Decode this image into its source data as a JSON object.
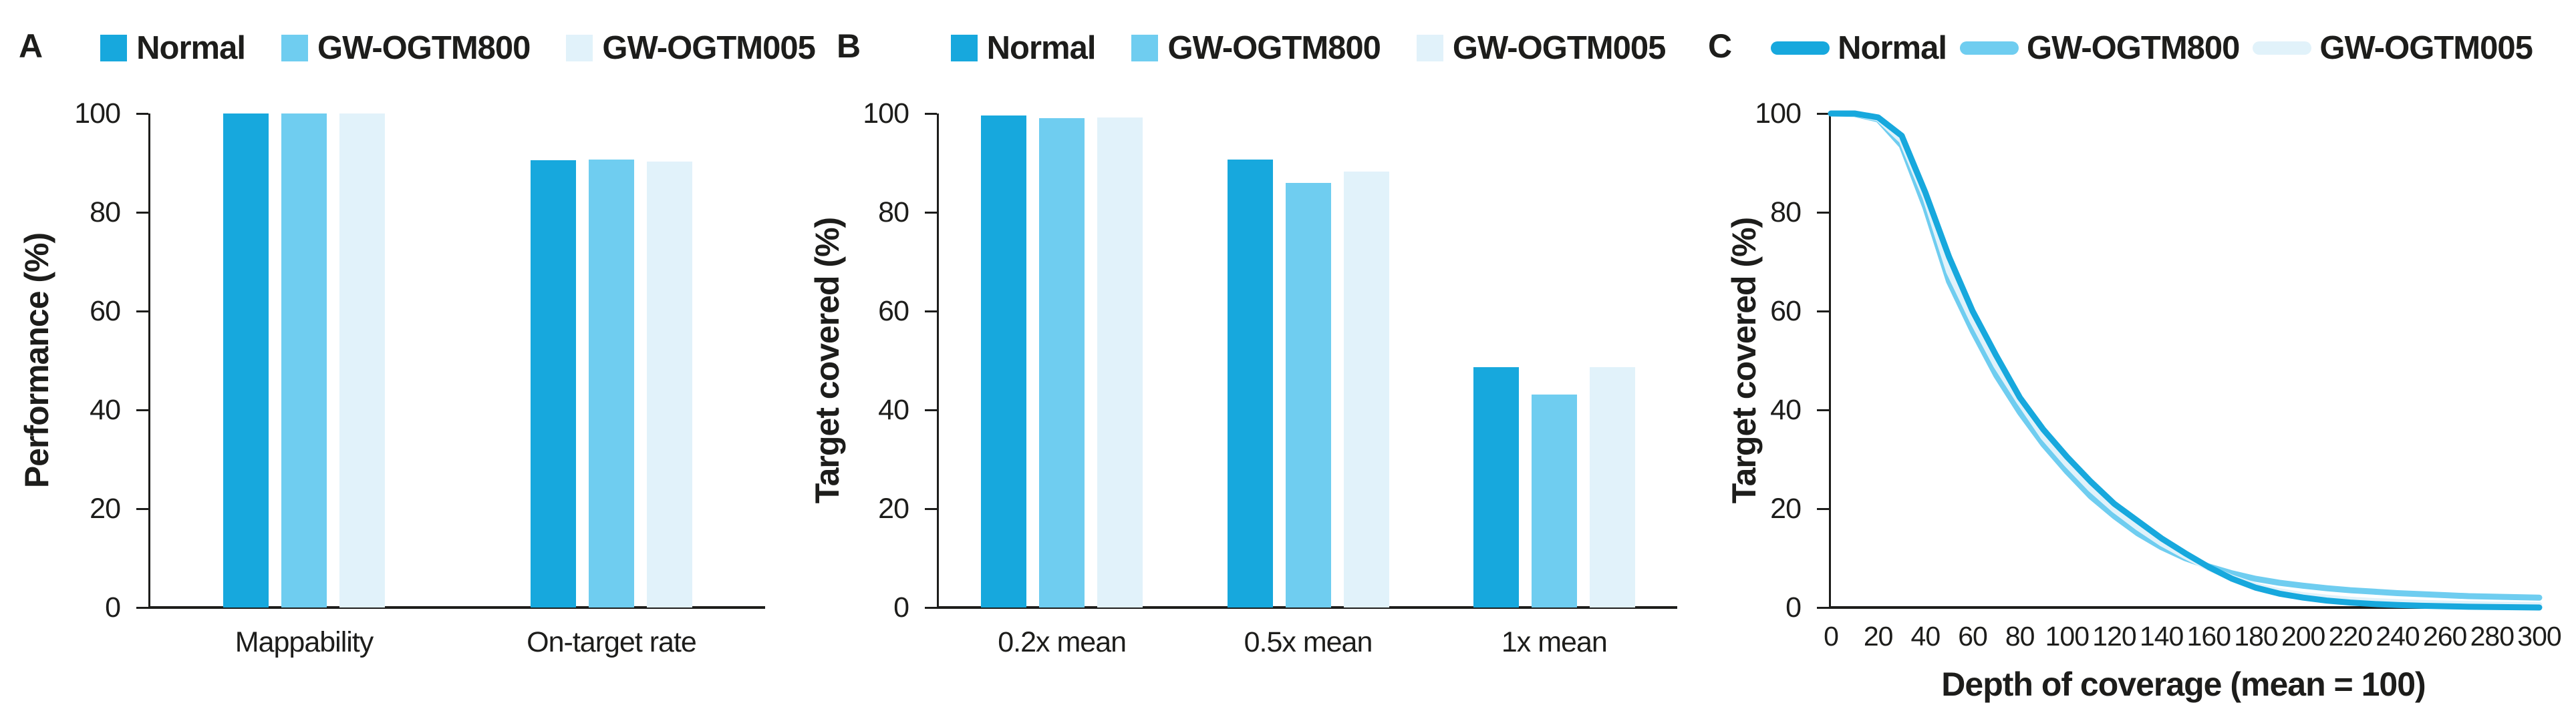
{
  "chart_data": [
    {
      "panel_letter": "A",
      "type": "bar",
      "title": "",
      "y_label": "Performance (%)",
      "x_label": "",
      "categories": [
        "Mappability",
        "On-target rate"
      ],
      "series": [
        {
          "name": "Normal",
          "color": "#17a8dd",
          "values": [
            100,
            90.5
          ]
        },
        {
          "name": "GW-OGTM800",
          "color": "#6fcdf0",
          "values": [
            100,
            90.7
          ]
        },
        {
          "name": "GW-OGTM005",
          "color": "#e1f2fa",
          "values": [
            100,
            90.3
          ]
        }
      ],
      "ylim": [
        0,
        100
      ],
      "yticks": [
        0,
        20,
        40,
        60,
        80,
        100
      ],
      "grid": false,
      "legend_position": "top",
      "legend_swatch": "square"
    },
    {
      "panel_letter": "B",
      "type": "bar",
      "title": "",
      "y_label": "Target covered (%)",
      "x_label": "",
      "categories": [
        "0.2x mean",
        "0.5x mean",
        "1x mean"
      ],
      "series": [
        {
          "name": "Normal",
          "color": "#17a8dd",
          "values": [
            99.6,
            90.7,
            48.6
          ]
        },
        {
          "name": "GW-OGTM800",
          "color": "#6fcdf0",
          "values": [
            99.1,
            86.0,
            43.1
          ]
        },
        {
          "name": "GW-OGTM005",
          "color": "#e1f2fa",
          "values": [
            99.2,
            88.2,
            48.7
          ]
        }
      ],
      "ylim": [
        0,
        100
      ],
      "yticks": [
        0,
        20,
        40,
        60,
        80,
        100
      ],
      "grid": false,
      "legend_position": "top",
      "legend_swatch": "square"
    },
    {
      "panel_letter": "C",
      "type": "line",
      "title": "",
      "y_label": "Target covered (%)",
      "x_label": "Depth of coverage (mean = 100)",
      "xlim": [
        0,
        300
      ],
      "ylim": [
        0,
        100
      ],
      "xticks": [
        0,
        20,
        40,
        60,
        80,
        100,
        120,
        140,
        160,
        180,
        200,
        220,
        240,
        260,
        280,
        300
      ],
      "yticks": [
        0,
        20,
        40,
        60,
        80,
        100
      ],
      "grid": false,
      "legend_position": "top",
      "legend_swatch": "line",
      "x": [
        0,
        10,
        20,
        30,
        40,
        50,
        60,
        70,
        80,
        90,
        100,
        110,
        120,
        130,
        140,
        150,
        160,
        170,
        180,
        190,
        200,
        210,
        220,
        230,
        240,
        250,
        260,
        270,
        280,
        290,
        300
      ],
      "series": [
        {
          "name": "Normal",
          "color": "#17a8dd",
          "y": [
            100,
            100,
            99.2,
            95.5,
            84,
            71,
            60,
            51,
            42.5,
            36,
            30.5,
            25.5,
            21,
            17.5,
            14,
            11,
            8.2,
            5.8,
            4,
            2.8,
            2,
            1.4,
            1,
            0.7,
            0.5,
            0.35,
            0.25,
            0.15,
            0.1,
            0.05,
            0
          ]
        },
        {
          "name": "GW-OGTM800",
          "color": "#6fcdf0",
          "y": [
            100,
            99.9,
            98.8,
            93.5,
            81,
            66,
            56,
            47,
            39.5,
            33,
            27.5,
            22.5,
            18.5,
            15,
            12.2,
            10,
            8.3,
            6.9,
            5.8,
            5,
            4.4,
            3.9,
            3.5,
            3.2,
            2.9,
            2.7,
            2.5,
            2.3,
            2.2,
            2.1,
            2
          ]
        },
        {
          "name": "GW-OGTM005",
          "color": "#e1f2fa",
          "y": [
            100,
            100,
            99,
            94.5,
            83,
            68,
            58,
            49,
            41.5,
            34.5,
            29,
            24,
            19.8,
            16.2,
            13,
            10.4,
            8,
            6,
            4.4,
            3.3,
            2.5,
            2,
            1.6,
            1.3,
            1.1,
            0.95,
            0.8,
            0.7,
            0.6,
            0.55,
            0.5
          ]
        }
      ]
    }
  ]
}
